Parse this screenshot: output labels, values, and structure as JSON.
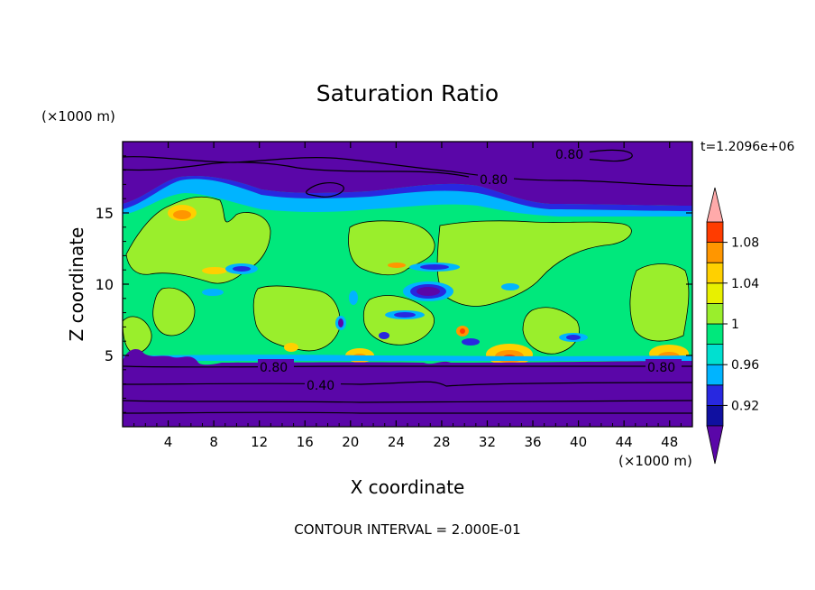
{
  "chart_data": {
    "type": "contour",
    "title": "Saturation Ratio",
    "xlabel": "X coordinate",
    "ylabel": "Z coordinate",
    "x_unit": "(×1000 m)",
    "y_unit": "(×1000 m)",
    "time_label": "t=1.2096e+06",
    "footer": "CONTOUR INTERVAL = 2.000E-01",
    "xlim": [
      0,
      50
    ],
    "ylim": [
      0,
      20
    ],
    "x_ticks": [
      4,
      8,
      12,
      16,
      20,
      24,
      28,
      32,
      36,
      40,
      44,
      48
    ],
    "x_tick_labels": [
      "4",
      "8",
      "12",
      "16",
      "20",
      "24",
      "28",
      "32",
      "36",
      "40",
      "44",
      "48"
    ],
    "y_ticks": [
      5,
      10,
      15
    ],
    "y_tick_labels": [
      "5",
      "10",
      "15"
    ],
    "colorbar": {
      "levels": [
        0.9,
        0.92,
        0.94,
        0.96,
        0.98,
        1.0,
        1.02,
        1.04,
        1.06,
        1.08,
        1.1
      ],
      "tick_values": [
        0.92,
        0.96,
        1.0,
        1.04,
        1.08
      ],
      "tick_labels": [
        "0.92",
        "0.96",
        "1",
        "1.04",
        "1.08"
      ],
      "colors": [
        "#1010a0",
        "#2828e0",
        "#00b4ff",
        "#00e0d0",
        "#00e87c",
        "#9aee2c",
        "#e8f000",
        "#ffd000",
        "#ff9600",
        "#ff3c00"
      ],
      "under_color": "#5a06a8",
      "over_color": "#ffaaaa"
    },
    "contour_lines": [
      {
        "label": "0.80",
        "value": 0.8,
        "label_x": 30.5,
        "label_z": 17.4
      },
      {
        "label": "0.80",
        "value": 0.8,
        "label_x": 38.9,
        "label_z": 19.1
      },
      {
        "label": "0.80",
        "value": 0.8,
        "label_x": 13.5,
        "label_z": 4.3
      },
      {
        "label": "0.80",
        "value": 0.8,
        "label_x": 47.5,
        "label_z": 4.3
      },
      {
        "label": "0.40",
        "value": 0.4,
        "label_x": 17.5,
        "label_z": 3.0
      }
    ],
    "regions": {
      "upper_dry_layer_z": [
        15.0,
        20.0
      ],
      "cloud_layer_z": [
        4.8,
        15.0
      ],
      "lower_dry_layer_z": [
        0.0,
        4.8
      ]
    }
  }
}
